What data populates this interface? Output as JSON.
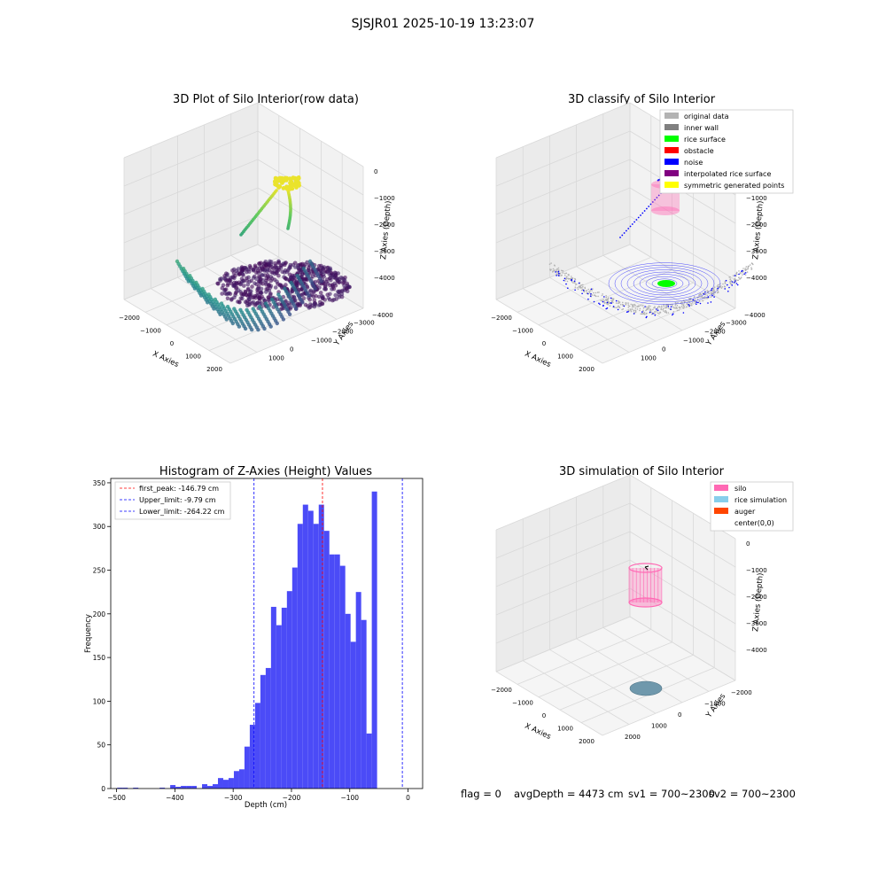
{
  "figure": {
    "suptitle": "SJSJR01 2025-10-19 13:23:07",
    "status_line": {
      "flag": "flag = 0",
      "avg_depth": "avgDepth = 4473 cm",
      "sv1": "sv1 = 700~2300",
      "sv2": "sv2 = 700~2300"
    }
  },
  "colors": {
    "original": "#b3b3b3",
    "inner_wall": "#808080",
    "rice_surface": "#00ff00",
    "obstacle": "#ff0000",
    "noise": "#0000ff",
    "interpolated": "#800080",
    "symmetric": "#ffff00",
    "silo": "#ff69b4",
    "rice_sim": "#87ceeb",
    "auger": "#ff4500",
    "hist_bar": "#4b4bf7",
    "first_peak": "#ff0000",
    "limits": "#0000ff",
    "pane_back": "#f2f2f2",
    "pane_side": "#ebebeb",
    "pane_floor": "#f5f5f5",
    "grid": "#d9d9d9"
  },
  "chart_data": [
    {
      "type": "scatter",
      "title": "3D Plot of Silo Interior(row data)",
      "xlabel": "X Axies",
      "ylabel": "Y Axies",
      "zlabel": "Z Axies (Depth)",
      "xticks": [
        "−2000",
        "−1000",
        "0",
        "1000",
        "2000"
      ],
      "yticks": [
        "1000",
        "0",
        "−1000",
        "−2000",
        "−3000",
        "−4000"
      ],
      "zticks": [
        "0",
        "−1000",
        "−2000",
        "−3000",
        "−4000"
      ],
      "colormap": "viridis"
    },
    {
      "type": "scatter",
      "title": "3D classify of Silo Interior",
      "xlabel": "X Axies",
      "ylabel": "Y Axies",
      "zlabel": "Z Axies (Depth)",
      "xticks": [
        "−2000",
        "−1000",
        "0",
        "1000",
        "2000"
      ],
      "yticks": [
        "1000",
        "0",
        "−1000",
        "−2000",
        "−3000",
        "−4000"
      ],
      "zticks": [
        "0",
        "−1000",
        "−2000",
        "−3000",
        "−4000"
      ],
      "legend": [
        {
          "name": "original data",
          "color": "#b3b3b3"
        },
        {
          "name": "inner wall",
          "color": "#808080"
        },
        {
          "name": "rice surface",
          "color": "#00ff00"
        },
        {
          "name": "obstacle",
          "color": "#ff0000"
        },
        {
          "name": "noise",
          "color": "#0000ff"
        },
        {
          "name": "interpolated rice surface",
          "color": "#800080"
        },
        {
          "name": "symmetric generated points",
          "color": "#ffff00"
        }
      ],
      "legend_position": "top-right"
    },
    {
      "type": "bar",
      "title": "Histogram of Z-Axies (Height) Values",
      "xlabel": "Depth (cm)",
      "ylabel": "Frequency",
      "xlim": [
        -510,
        25
      ],
      "ylim": [
        0,
        355
      ],
      "xticks": [
        -500,
        -400,
        -300,
        -200,
        -100,
        0
      ],
      "xtick_labels": [
        "−500",
        "−400",
        "−300",
        "−200",
        "−100",
        "0"
      ],
      "yticks": [
        0,
        50,
        100,
        150,
        200,
        250,
        300,
        350
      ],
      "bin_start": -499,
      "bin_width": 9.1,
      "values": [
        1,
        1,
        0,
        1,
        0,
        0,
        0,
        0,
        1,
        0,
        4,
        2,
        3,
        3,
        3,
        0,
        5,
        3,
        5,
        12,
        10,
        12,
        20,
        22,
        48,
        73,
        98,
        130,
        138,
        208,
        187,
        207,
        226,
        253,
        303,
        325,
        318,
        303,
        325,
        295,
        268,
        268,
        255,
        200,
        168,
        225,
        193,
        63,
        340
      ],
      "lines": [
        {
          "label": "first_peak: -146.79 cm",
          "x": -146.79,
          "color": "#ff0000"
        },
        {
          "label": "Upper_limit: -9.79 cm",
          "x": -9.79,
          "color": "#0000ff"
        },
        {
          "label": "Lower_limit: -264.22 cm",
          "x": -264.22,
          "color": "#0000ff"
        }
      ],
      "legend_position": "top-left"
    },
    {
      "type": "scatter",
      "title": "3D simulation of Silo Interior",
      "xlabel": "X Axies",
      "ylabel": "Y Axies",
      "zlabel": "Z Axies (Depth)",
      "xticks": [
        "−2000",
        "−1000",
        "0",
        "1000",
        "2000"
      ],
      "yticks": [
        "2000",
        "1000",
        "0",
        "−1000",
        "−2000"
      ],
      "zticks": [
        "0",
        "−1000",
        "−2000",
        "−3000",
        "−4000"
      ],
      "legend": [
        {
          "name": "silo",
          "color": "#ff69b4"
        },
        {
          "name": "rice simulation",
          "color": "#87ceeb"
        },
        {
          "name": "auger",
          "color": "#ff4500"
        },
        {
          "name": "center(0,0)",
          "color": ""
        }
      ],
      "legend_position": "top-right"
    }
  ]
}
